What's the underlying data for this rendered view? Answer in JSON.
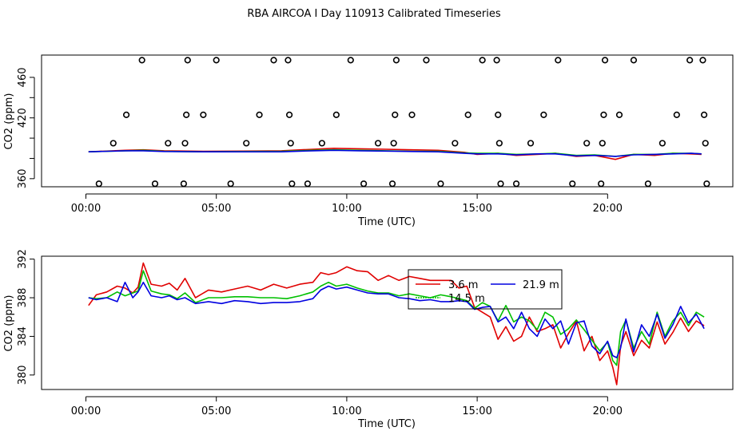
{
  "title": "RBA AIRCOA I  Day 110913  Calibrated Timeseries",
  "chart_data": [
    {
      "type": "line",
      "xlabel": "Time (UTC)",
      "ylabel": "CO2 (ppm)",
      "xlim": [
        -1.7,
        24.8
      ],
      "ylim": [
        352,
        482
      ],
      "x_ticks": [
        0,
        5,
        10,
        15,
        20
      ],
      "x_tick_labels": [
        "00:00",
        "05:00",
        "10:00",
        "15:00",
        "20:00"
      ],
      "y_ticks": [
        360,
        380,
        400,
        420,
        440,
        460
      ],
      "y_tick_labels": [
        "360",
        "",
        "",
        "420",
        "",
        "460"
      ],
      "colors": {
        "s1": "#e00000",
        "s2": "#00c000",
        "s3": "#0000e0",
        "pts": "#000000"
      },
      "line_series": [
        {
          "color": "#e00000",
          "x": [
            0.1,
            1.5,
            2.2,
            3.0,
            4.5,
            6.0,
            7.5,
            8.7,
            9.5,
            10.5,
            11.5,
            12.5,
            13.5,
            14.5,
            15.0,
            15.8,
            16.5,
            17.3,
            18.0,
            18.8,
            19.5,
            20.3,
            21.0,
            21.8,
            22.5,
            23.2,
            23.6
          ],
          "y": [
            386.5,
            388,
            388.5,
            387.5,
            387,
            387.2,
            387.5,
            389,
            390,
            389.5,
            389,
            388.5,
            388,
            386,
            384,
            385,
            383,
            384,
            385,
            382,
            383,
            379,
            384,
            383,
            385,
            384.5,
            384
          ]
        },
        {
          "color": "#00c000",
          "x": [
            0.1,
            1.5,
            2.2,
            3.0,
            4.5,
            6.0,
            7.5,
            8.7,
            9.5,
            10.5,
            11.5,
            12.5,
            13.5,
            14.5,
            15.0,
            15.8,
            16.5,
            17.3,
            18.0,
            18.8,
            19.5,
            20.3,
            21.0,
            21.8,
            22.5,
            23.2,
            23.6
          ],
          "y": [
            386.5,
            387.5,
            388,
            387,
            386.5,
            386.8,
            387,
            388,
            388.5,
            388,
            387.5,
            387,
            387,
            385.5,
            385,
            385,
            384,
            384.5,
            385,
            383,
            383.5,
            382,
            384,
            384,
            385,
            385,
            384.5
          ]
        },
        {
          "color": "#0000e0",
          "x": [
            0.1,
            1.5,
            2.2,
            3.0,
            4.5,
            6.0,
            7.5,
            8.7,
            9.5,
            10.5,
            11.5,
            12.5,
            13.5,
            14.5,
            15.0,
            15.8,
            16.5,
            17.3,
            18.0,
            18.8,
            19.5,
            20.3,
            21.0,
            21.8,
            22.5,
            23.2,
            23.6
          ],
          "y": [
            386.5,
            387.5,
            387.5,
            386.8,
            386.5,
            386.5,
            386.5,
            387.5,
            388,
            387.5,
            387.2,
            386.8,
            386.5,
            385,
            384.5,
            384.5,
            383.5,
            384.5,
            384.5,
            382.5,
            383,
            382,
            383.5,
            384,
            384.5,
            385,
            384.5
          ]
        }
      ],
      "point_series": {
        "x": [
          0.5,
          1.05,
          1.55,
          2.15,
          2.65,
          3.15,
          3.75,
          3.8,
          3.85,
          3.9,
          4.5,
          5.0,
          5.55,
          6.15,
          6.65,
          7.2,
          7.75,
          7.8,
          7.85,
          7.9,
          8.5,
          9.05,
          9.6,
          10.15,
          10.65,
          11.2,
          11.75,
          11.8,
          11.85,
          11.9,
          12.5,
          13.05,
          13.6,
          14.15,
          14.65,
          15.2,
          15.75,
          15.8,
          15.85,
          15.9,
          16.5,
          17.05,
          17.55,
          18.1,
          18.65,
          19.2,
          19.75,
          19.8,
          19.85,
          19.9,
          20.45,
          21.0,
          21.55,
          22.1,
          22.65,
          23.15,
          23.65,
          23.7,
          23.75,
          23.8
        ],
        "y": [
          355,
          395,
          423,
          477,
          355,
          395,
          355,
          395,
          423,
          477,
          423,
          477,
          355,
          395,
          423,
          477,
          477,
          423,
          395,
          355,
          355,
          395,
          423,
          477,
          355,
          395,
          355,
          395,
          423,
          477,
          423,
          477,
          355,
          395,
          423,
          477,
          477,
          423,
          395,
          355,
          355,
          395,
          423,
          477,
          355,
          395,
          355,
          395,
          423,
          477,
          423,
          477,
          355,
          395,
          423,
          477,
          477,
          423,
          395,
          355
        ]
      }
    },
    {
      "type": "line",
      "xlabel": "Time (UTC)",
      "ylabel": "CO2 (ppm)",
      "xlim": [
        -1.7,
        24.8
      ],
      "ylim": [
        378.5,
        392.3
      ],
      "x_ticks": [
        0,
        5,
        10,
        15,
        20
      ],
      "x_tick_labels": [
        "00:00",
        "05:00",
        "10:00",
        "15:00",
        "20:00"
      ],
      "y_ticks": [
        380,
        384,
        388,
        392
      ],
      "y_tick_labels": [
        "380",
        "384",
        "388",
        "392"
      ],
      "legend": {
        "position": "center",
        "entries": [
          "3.6 m",
          "14.5 m",
          "21.9 m"
        ]
      },
      "series": [
        {
          "name": "3.6 m",
          "color": "#e00000",
          "x": [
            0.1,
            0.4,
            0.8,
            1.2,
            1.5,
            1.8,
            2.0,
            2.2,
            2.5,
            2.9,
            3.2,
            3.5,
            3.8,
            4.2,
            4.7,
            5.2,
            5.7,
            6.2,
            6.7,
            7.2,
            7.7,
            8.2,
            8.7,
            9.0,
            9.3,
            9.6,
            10.0,
            10.4,
            10.8,
            11.2,
            11.6,
            12.0,
            12.4,
            12.8,
            13.2,
            13.6,
            14.0,
            14.3,
            14.6,
            14.9,
            15.2,
            15.5,
            15.8,
            16.1,
            16.4,
            16.7,
            17.0,
            17.3,
            17.6,
            17.9,
            18.2,
            18.5,
            18.8,
            19.1,
            19.4,
            19.7,
            20.0,
            20.2,
            20.35,
            20.5,
            20.7,
            21.0,
            21.3,
            21.6,
            21.9,
            22.2,
            22.5,
            22.8,
            23.1,
            23.4,
            23.7
          ],
          "y": [
            387.2,
            388.3,
            388.6,
            389.2,
            389.0,
            388.5,
            389.1,
            391.6,
            389.4,
            389.2,
            389.5,
            388.8,
            390.0,
            388.0,
            388.8,
            388.6,
            388.9,
            389.2,
            388.8,
            389.4,
            389.0,
            389.4,
            389.6,
            390.6,
            390.4,
            390.6,
            391.2,
            390.8,
            390.7,
            389.8,
            390.3,
            389.8,
            390.2,
            390.0,
            389.8,
            389.8,
            389.8,
            389.0,
            389.2,
            387.0,
            386.5,
            386.0,
            383.7,
            385.0,
            383.5,
            384.0,
            386.0,
            384.5,
            384.8,
            385.2,
            382.8,
            384.3,
            385.6,
            382.5,
            384.0,
            381.5,
            382.5,
            380.8,
            379.0,
            383.0,
            384.5,
            382.0,
            383.6,
            382.8,
            385.5,
            383.2,
            384.4,
            385.9,
            384.5,
            385.6,
            385.1
          ]
        },
        {
          "name": "14.5 m",
          "color": "#00c000",
          "x": [
            0.1,
            0.4,
            0.8,
            1.2,
            1.5,
            1.8,
            2.0,
            2.2,
            2.5,
            2.9,
            3.2,
            3.5,
            3.8,
            4.2,
            4.7,
            5.2,
            5.7,
            6.2,
            6.7,
            7.2,
            7.7,
            8.2,
            8.7,
            9.0,
            9.3,
            9.6,
            10.0,
            10.4,
            10.8,
            11.2,
            11.6,
            12.0,
            12.4,
            12.8,
            13.2,
            13.6,
            14.0,
            14.3,
            14.6,
            14.9,
            15.2,
            15.5,
            15.8,
            16.1,
            16.4,
            16.7,
            17.0,
            17.3,
            17.6,
            17.9,
            18.2,
            18.5,
            18.8,
            19.1,
            19.4,
            19.7,
            20.0,
            20.2,
            20.35,
            20.5,
            20.7,
            21.0,
            21.3,
            21.6,
            21.9,
            22.2,
            22.5,
            22.8,
            23.1,
            23.4,
            23.7
          ],
          "y": [
            388.0,
            387.9,
            388.0,
            388.6,
            388.2,
            388.5,
            388.7,
            390.8,
            388.7,
            388.4,
            388.3,
            387.9,
            388.5,
            387.5,
            388.0,
            388.0,
            388.1,
            388.1,
            388.0,
            388.0,
            387.9,
            388.2,
            388.6,
            389.2,
            389.6,
            389.2,
            389.4,
            389.0,
            388.7,
            388.5,
            388.5,
            388.2,
            388.4,
            388.2,
            388.0,
            388.3,
            388.1,
            387.9,
            387.7,
            386.9,
            387.5,
            387.1,
            385.6,
            387.2,
            385.5,
            386.0,
            385.6,
            384.7,
            386.5,
            386.0,
            384.2,
            384.8,
            385.7,
            384.7,
            383.6,
            382.5,
            383.4,
            381.5,
            381.0,
            384.5,
            385.7,
            382.8,
            384.5,
            383.2,
            386.5,
            384.0,
            385.6,
            386.5,
            385.1,
            386.5,
            386.0
          ]
        },
        {
          "name": "21.9 m",
          "color": "#0000e0",
          "x": [
            0.1,
            0.4,
            0.8,
            1.2,
            1.5,
            1.8,
            2.0,
            2.2,
            2.5,
            2.9,
            3.2,
            3.5,
            3.8,
            4.2,
            4.7,
            5.2,
            5.7,
            6.2,
            6.7,
            7.2,
            7.7,
            8.2,
            8.7,
            9.0,
            9.3,
            9.6,
            10.0,
            10.4,
            10.8,
            11.2,
            11.6,
            12.0,
            12.4,
            12.8,
            13.2,
            13.6,
            14.0,
            14.3,
            14.6,
            14.9,
            15.2,
            15.5,
            15.8,
            16.1,
            16.4,
            16.7,
            17.0,
            17.3,
            17.6,
            17.9,
            18.2,
            18.5,
            18.8,
            19.1,
            19.4,
            19.7,
            20.0,
            20.2,
            20.35,
            20.5,
            20.7,
            21.0,
            21.3,
            21.6,
            21.9,
            22.2,
            22.5,
            22.8,
            23.1,
            23.4,
            23.7
          ],
          "y": [
            388.0,
            387.8,
            388.0,
            387.6,
            389.6,
            388.0,
            388.6,
            389.6,
            388.2,
            388.0,
            388.2,
            387.8,
            388.0,
            387.4,
            387.6,
            387.4,
            387.7,
            387.6,
            387.4,
            387.5,
            387.5,
            387.6,
            387.9,
            388.8,
            389.2,
            388.9,
            389.1,
            388.8,
            388.5,
            388.4,
            388.4,
            388.0,
            387.9,
            387.7,
            387.8,
            387.6,
            387.6,
            387.7,
            387.6,
            386.8,
            387.0,
            387.1,
            385.5,
            386.0,
            384.8,
            386.5,
            384.8,
            384.0,
            385.8,
            384.8,
            385.6,
            383.2,
            385.4,
            385.6,
            383.0,
            382.2,
            383.5,
            382.0,
            381.8,
            382.8,
            385.8,
            382.4,
            385.2,
            384.0,
            386.3,
            383.8,
            385.2,
            387.1,
            385.4,
            386.3,
            384.8
          ]
        }
      ]
    }
  ]
}
